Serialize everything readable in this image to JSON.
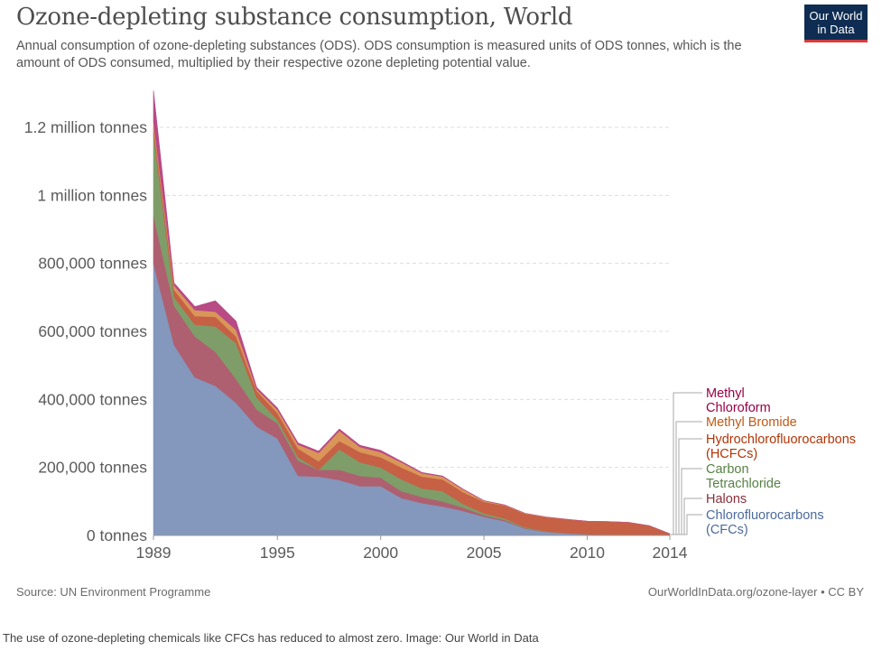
{
  "header": {
    "title": "Ozone-depleting substance consumption, World",
    "subtitle": "Annual consumption of ozone-depleting substances (ODS). ODS consumption is measured units of ODS tonnes, which is the amount of ODS consumed, multiplied by their respective ozone depleting potential value.",
    "logo_line1": "Our World",
    "logo_line2": "in Data"
  },
  "footer": {
    "source": "Source: UN Environment Programme",
    "credit": "OurWorldInData.org/ozone-layer • CC BY"
  },
  "caption": "The use of ozone-depleting chemicals like CFCs has reduced to almost zero. Image: Our World in Data",
  "chart_data": {
    "type": "area",
    "stacked": true,
    "title": "Ozone-depleting substance consumption, World",
    "x": [
      1989,
      1990,
      1991,
      1992,
      1993,
      1994,
      1995,
      1996,
      1997,
      1998,
      1999,
      2000,
      2001,
      2002,
      2003,
      2004,
      2005,
      2006,
      2007,
      2008,
      2009,
      2010,
      2011,
      2012,
      2013,
      2014
    ],
    "ylim": [
      0,
      1300000
    ],
    "y_ticks": [
      {
        "value": 0,
        "label": "0 tonnes"
      },
      {
        "value": 200000,
        "label": "200,000 tonnes"
      },
      {
        "value": 400000,
        "label": "400,000 tonnes"
      },
      {
        "value": 600000,
        "label": "600,000 tonnes"
      },
      {
        "value": 800000,
        "label": "800,000 tonnes"
      },
      {
        "value": 1000000,
        "label": "1 million tonnes"
      },
      {
        "value": 1200000,
        "label": "1.2 million tonnes"
      }
    ],
    "x_ticks": [
      {
        "value": 1989,
        "label": "1989"
      },
      {
        "value": 1995,
        "label": "1995"
      },
      {
        "value": 2000,
        "label": "2000"
      },
      {
        "value": 2005,
        "label": "2005"
      },
      {
        "value": 2010,
        "label": "2010"
      },
      {
        "value": 2014,
        "label": "2014"
      }
    ],
    "grid": true,
    "legend_position": "right",
    "series": [
      {
        "name": "Chlorofluorocarbons (CFCs)",
        "legend_lines": [
          "Chlorofluorocarbons",
          "(CFCs)"
        ],
        "color": "#8497bd",
        "text_color": "#4c6a9c",
        "values": [
          800000,
          560000,
          465000,
          440000,
          390000,
          320000,
          285000,
          175000,
          173000,
          163000,
          145000,
          145000,
          110000,
          95000,
          85000,
          72000,
          55000,
          42000,
          20000,
          10000,
          6000,
          3000,
          2000,
          1000,
          500,
          0
        ]
      },
      {
        "name": "Halons",
        "legend_lines": [
          "Halons"
        ],
        "color": "#ae6070",
        "text_color": "#883039",
        "values": [
          140000,
          115000,
          120000,
          100000,
          70000,
          50000,
          45000,
          45000,
          20000,
          30000,
          30000,
          25000,
          20000,
          18000,
          15000,
          10000,
          5000,
          3000,
          2000,
          1000,
          800,
          500,
          300,
          200,
          100,
          0
        ]
      },
      {
        "name": "Carbon Tetrachloride",
        "legend_lines": [
          "Carbon",
          "Tetrachloride"
        ],
        "color": "#7f9d69",
        "text_color": "#578145",
        "values": [
          240000,
          25000,
          35000,
          75000,
          105000,
          35000,
          10000,
          10000,
          0,
          60000,
          40000,
          30000,
          35000,
          25000,
          30000,
          10000,
          5000,
          5000,
          2000,
          1000,
          500,
          300,
          200,
          100,
          100,
          0
        ]
      },
      {
        "name": "Hydrochlorofluorocarbons (HCFCs)",
        "legend_lines": [
          "Hydrochlorofluorocarbons",
          "(HCFCs)"
        ],
        "color": "#c66145",
        "text_color": "#b13507",
        "values": [
          20000,
          22000,
          25000,
          28000,
          20000,
          20000,
          20000,
          25000,
          25000,
          25000,
          30000,
          30000,
          35000,
          35000,
          35000,
          35000,
          34000,
          38000,
          40000,
          42000,
          40000,
          38000,
          38000,
          37000,
          28000,
          5000
        ]
      },
      {
        "name": "Methyl Bromide",
        "legend_lines": [
          "Methyl Bromide"
        ],
        "color": "#d99658",
        "text_color": "#c05917",
        "values": [
          18000,
          13000,
          18000,
          15000,
          20000,
          5000,
          10000,
          12000,
          25000,
          30000,
          15000,
          15000,
          15000,
          10000,
          8000,
          8000,
          3000,
          1500,
          1000,
          500,
          300,
          200,
          100,
          0,
          0,
          0
        ]
      },
      {
        "name": "Methyl Chloroform",
        "legend_lines": [
          "Methyl",
          "Chloroform"
        ],
        "color": "#b84a86",
        "text_color": "#970046",
        "values": [
          90000,
          7000,
          10000,
          32000,
          25000,
          5000,
          5000,
          5000,
          5000,
          5000,
          5000,
          5000,
          3000,
          2000,
          2000,
          1000,
          500,
          200,
          0,
          0,
          0,
          0,
          0,
          0,
          0,
          0
        ]
      }
    ]
  }
}
